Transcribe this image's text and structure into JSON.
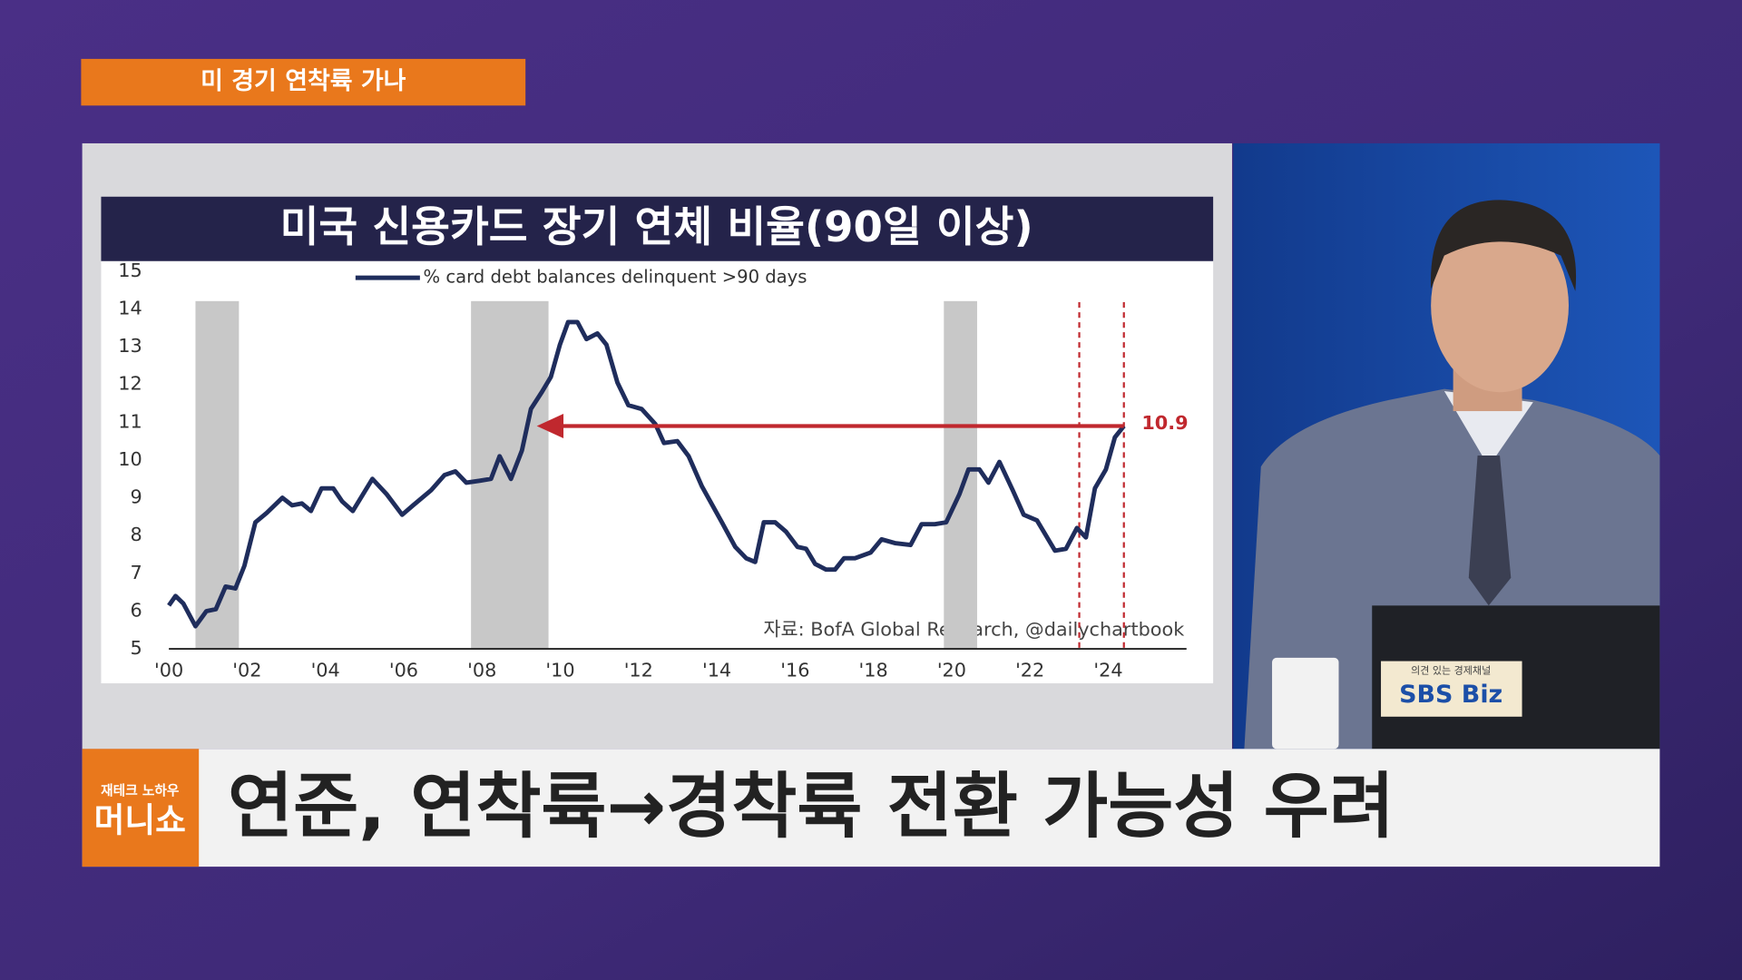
{
  "header": {
    "tag": "미 경기 연착륙 가나"
  },
  "chart_data": {
    "type": "line",
    "title": "미국 신용카드 장기 연체 비율(90일 이상)",
    "source": "자료: BofA Global Research, @dailychartbook",
    "x": [
      2000.0,
      2000.17,
      2000.37,
      2000.68,
      2000.96,
      2001.2,
      2001.45,
      2001.7,
      2001.93,
      2002.21,
      2002.5,
      2002.9,
      2003.15,
      2003.4,
      2003.63,
      2003.9,
      2004.2,
      2004.43,
      2004.7,
      2005.2,
      2005.56,
      2005.96,
      2006.24,
      2006.7,
      2007.04,
      2007.32,
      2007.6,
      2007.94,
      2008.23,
      2008.45,
      2008.74,
      2009.02,
      2009.25,
      2009.53,
      2009.76,
      2009.99,
      2010.2,
      2010.44,
      2010.67,
      2010.95,
      2011.18,
      2011.46,
      2011.74,
      2012.08,
      2012.43,
      2012.65,
      2012.99,
      2013.28,
      2013.62,
      2014.13,
      2014.47,
      2014.75,
      2014.98,
      2015.2,
      2015.49,
      2015.77,
      2016.06,
      2016.28,
      2016.51,
      2016.79,
      2017.02,
      2017.25,
      2017.53,
      2017.93,
      2018.21,
      2018.55,
      2018.95,
      2019.23,
      2019.57,
      2019.86,
      2020.2,
      2020.43,
      2020.71,
      2020.94,
      2021.22,
      2021.56,
      2021.84,
      2022.18,
      2022.64,
      2022.92,
      2023.2,
      2023.43,
      2023.66,
      2023.94,
      2024.17,
      2024.4
    ],
    "series": [
      {
        "name": "% card debt balances delinquent >90 days",
        "color": "#1f2d5c",
        "values": [
          6.15,
          6.4,
          6.2,
          5.6,
          6.0,
          6.05,
          6.65,
          6.6,
          7.2,
          8.35,
          8.6,
          9.0,
          8.8,
          8.85,
          8.65,
          9.25,
          9.25,
          8.9,
          8.65,
          9.5,
          9.1,
          8.55,
          8.8,
          9.2,
          9.6,
          9.7,
          9.4,
          9.45,
          9.5,
          10.1,
          9.5,
          10.25,
          11.35,
          11.8,
          12.2,
          13.05,
          13.65,
          13.65,
          13.2,
          13.35,
          13.05,
          12.05,
          11.45,
          11.35,
          10.95,
          10.45,
          10.5,
          10.1,
          9.3,
          8.35,
          7.7,
          7.4,
          7.3,
          8.35,
          8.35,
          8.1,
          7.7,
          7.65,
          7.25,
          7.1,
          7.1,
          7.4,
          7.4,
          7.55,
          7.9,
          7.8,
          7.75,
          8.3,
          8.3,
          8.35,
          9.1,
          9.75,
          9.75,
          9.4,
          9.95,
          9.2,
          8.55,
          8.4,
          7.6,
          7.65,
          8.2,
          7.95,
          9.25,
          9.75,
          10.6,
          10.9
        ]
      }
    ],
    "xlim": [
      2000,
      2026
    ],
    "xticks": [
      {
        "value": 2000,
        "label": "'00"
      },
      {
        "value": 2002,
        "label": "'02"
      },
      {
        "value": 2004,
        "label": "'04"
      },
      {
        "value": 2006,
        "label": "'06"
      },
      {
        "value": 2008,
        "label": "'08"
      },
      {
        "value": 2010,
        "label": "'10"
      },
      {
        "value": 2012,
        "label": "'12"
      },
      {
        "value": 2014,
        "label": "'14"
      },
      {
        "value": 2016,
        "label": "'16"
      },
      {
        "value": 2018,
        "label": "'18"
      },
      {
        "value": 2020,
        "label": "'20"
      },
      {
        "value": 2022,
        "label": "'22"
      },
      {
        "value": 2024,
        "label": "'24"
      }
    ],
    "ylim": [
      5,
      15
    ],
    "yticks": [
      5,
      6,
      7,
      8,
      9,
      10,
      11,
      12,
      13,
      14,
      15
    ],
    "grid": false,
    "shaded_ranges": [
      [
        2000.68,
        2001.79
      ],
      [
        2007.72,
        2009.7
      ],
      [
        2019.8,
        2020.65
      ]
    ],
    "shade_color": "#c8c8c8",
    "reference_lines": [
      2023.26,
      2024.4
    ],
    "reference_color": "#c0282e",
    "arrow": {
      "x_from": 2024.4,
      "x_to": 2009.4,
      "y": 10.9,
      "color": "#c0282e"
    }
  },
  "lower_third": {
    "logo_small": "재테크 노하우",
    "logo_big": "머니쇼",
    "headline": "연준, 연착륙→경착륙 전환 가능성 우려"
  },
  "desk": {
    "slogan": "의견 있는 경제채널",
    "brand": "SBS Biz"
  }
}
